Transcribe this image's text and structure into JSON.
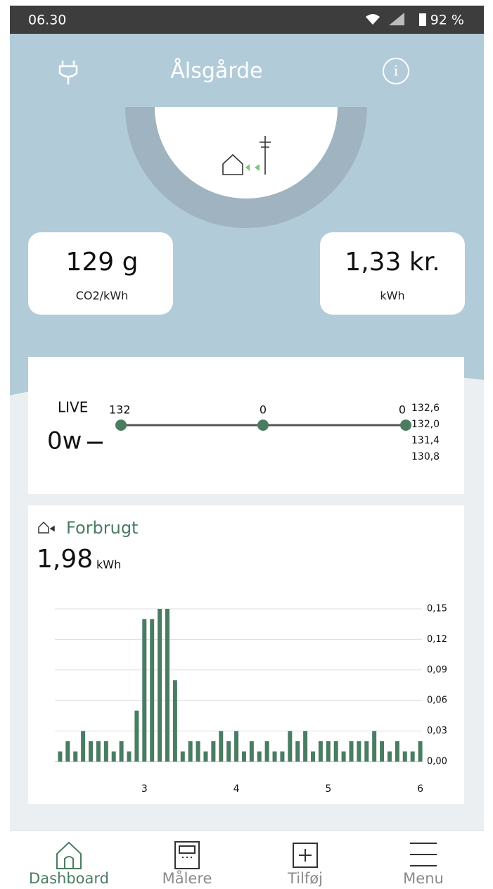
{
  "status_bar": {
    "time": "06.30",
    "battery": "92 %"
  },
  "header": {
    "title": "Ålsgårde"
  },
  "tiles": [
    {
      "value": "129 g",
      "unit": "CO2/kWh"
    },
    {
      "value": "1,33 kr.",
      "unit": "kWh"
    }
  ],
  "live": {
    "label": "LIVE",
    "value": "0w",
    "points": [
      "132",
      "0",
      "0"
    ],
    "scale": [
      "132,6",
      "132,0",
      "131,4",
      "130,8"
    ]
  },
  "consumption": {
    "title": "Forbrugt",
    "total": "1,98",
    "unit": "kWh"
  },
  "chart_data": {
    "type": "bar",
    "categories": [
      null,
      null,
      null,
      null,
      null,
      null,
      null,
      null,
      null,
      null,
      null,
      "3",
      null,
      null,
      null,
      null,
      null,
      null,
      null,
      null,
      null,
      null,
      null,
      "4",
      null,
      null,
      null,
      null,
      null,
      null,
      null,
      null,
      null,
      null,
      null,
      "5",
      null,
      null,
      null,
      null,
      null,
      null,
      null,
      null,
      null,
      null,
      null,
      "6"
    ],
    "values": [
      0.01,
      0.02,
      0.01,
      0.03,
      0.02,
      0.02,
      0.02,
      0.01,
      0.02,
      0.01,
      0.05,
      0.14,
      0.14,
      0.15,
      0.15,
      0.08,
      0.01,
      0.02,
      0.02,
      0.01,
      0.02,
      0.03,
      0.02,
      0.03,
      0.01,
      0.02,
      0.01,
      0.02,
      0.01,
      0.01,
      0.03,
      0.02,
      0.03,
      0.01,
      0.02,
      0.02,
      0.02,
      0.01,
      0.02,
      0.02,
      0.02,
      0.03,
      0.02,
      0.01,
      0.02,
      0.01,
      0.01,
      0.02
    ],
    "color": "#4a7c62",
    "ylim": [
      0,
      0.15
    ],
    "yticks": [
      {
        "value": 0,
        "label": "0,00"
      },
      {
        "value": 0.03,
        "label": "0,03"
      },
      {
        "value": 0.06,
        "label": "0,06"
      },
      {
        "value": 0.09,
        "label": "0,09"
      },
      {
        "value": 0.12,
        "label": "0,12"
      },
      {
        "value": 0.15,
        "label": "0,15"
      }
    ],
    "grid": true
  },
  "nav": [
    {
      "label": "Dashboard",
      "active": true
    },
    {
      "label": "Målere",
      "active": false
    },
    {
      "label": "Tilføj",
      "active": false
    },
    {
      "label": "Menu",
      "active": false
    }
  ]
}
